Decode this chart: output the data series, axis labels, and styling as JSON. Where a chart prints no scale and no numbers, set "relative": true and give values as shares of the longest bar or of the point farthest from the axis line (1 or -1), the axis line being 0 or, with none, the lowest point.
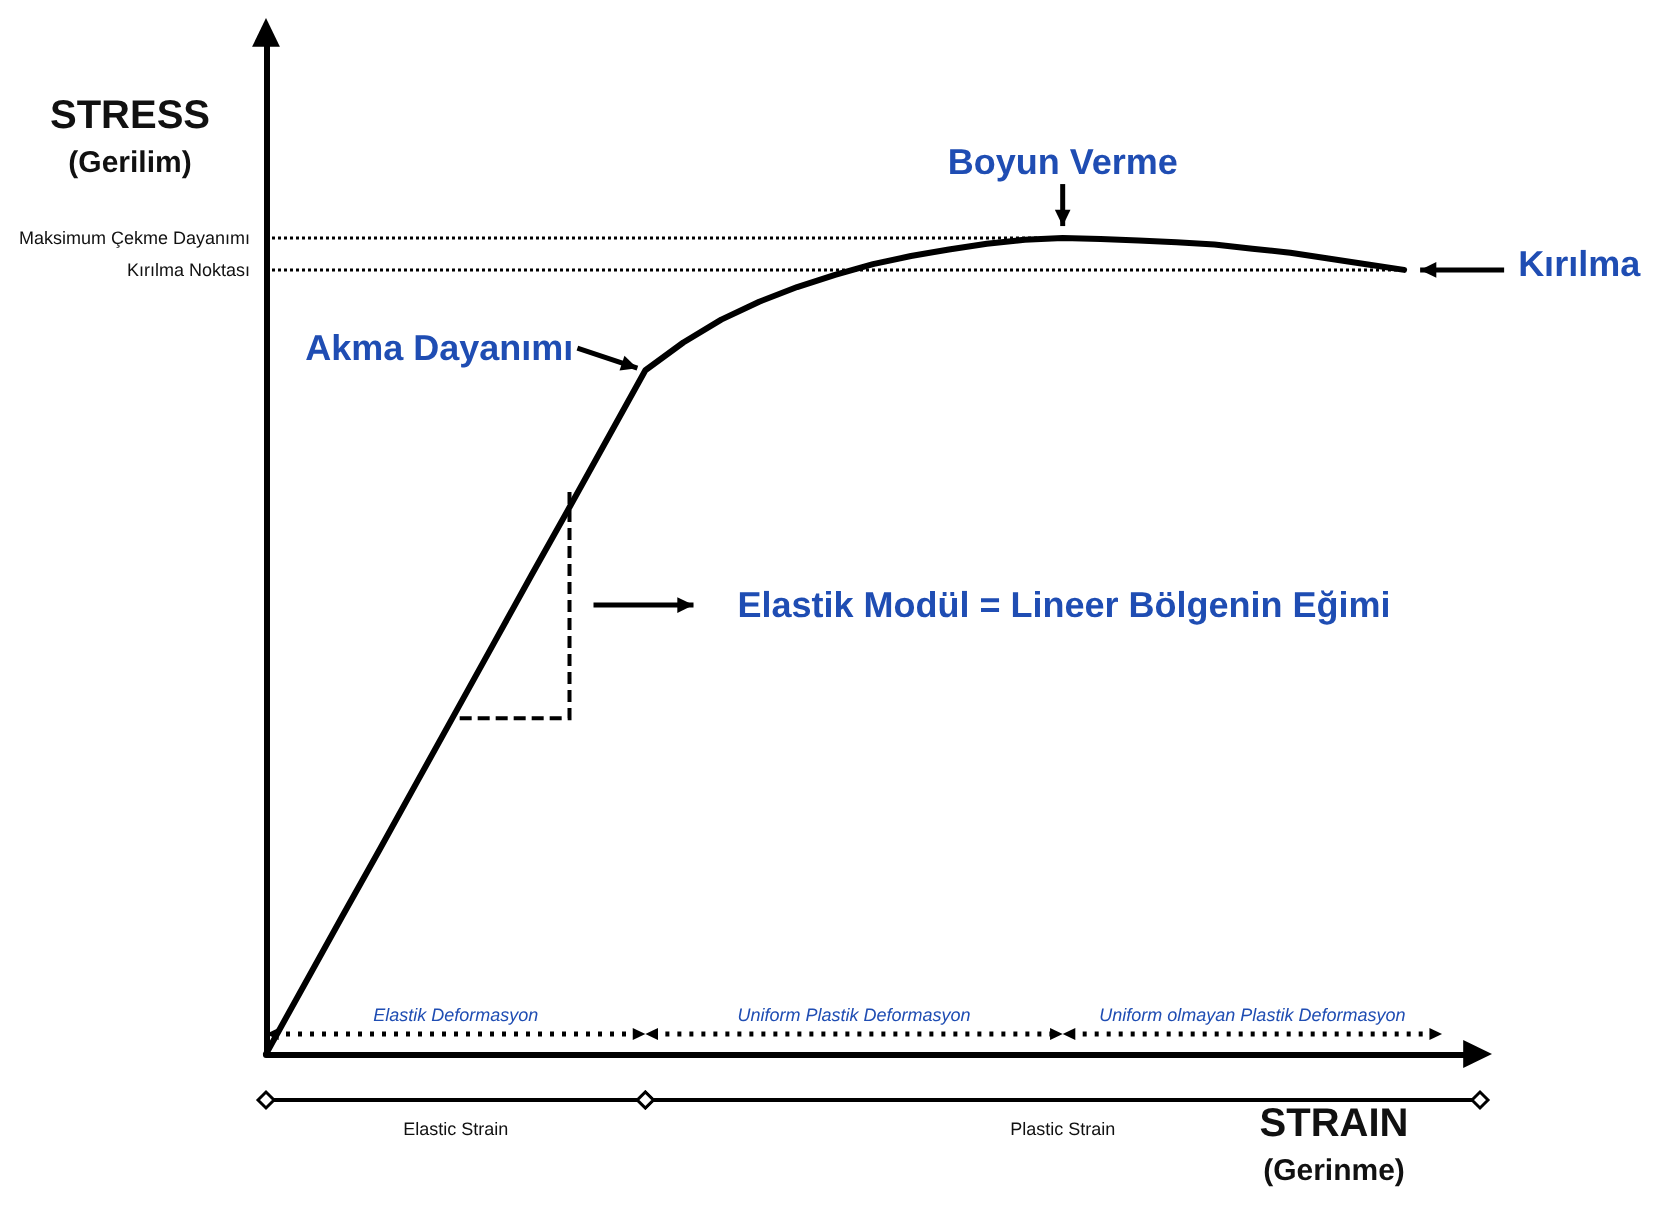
{
  "chart_data": {
    "type": "line",
    "relative": true,
    "grid": false,
    "marker": "none",
    "line_style": "solid",
    "color": "#000000",
    "ylabel": "STRESS\n(Gerilim)",
    "xlabel": "STRAIN\n(Gerinme)",
    "categories": [
      null,
      null,
      null,
      null,
      null,
      null,
      null,
      null,
      null,
      null,
      null,
      null,
      null,
      null,
      null,
      null,
      null,
      null,
      null,
      null,
      null,
      null,
      null,
      null,
      null,
      null,
      null,
      null,
      null,
      null,
      null,
      null,
      null
    ],
    "values": [
      0,
      0.084,
      0.168,
      0.251,
      0.335,
      0.419,
      0.503,
      0.587,
      0.67,
      0.754,
      0.838,
      0.872,
      0.9,
      0.922,
      0.94,
      0.955,
      0.968,
      0.978,
      0.986,
      0.993,
      0.998,
      1,
      0.999,
      0.997,
      0.995,
      0.992,
      0.987,
      0.982,
      0.975,
      0.968,
      0.961,
      null,
      null
    ],
    "ref_lines": [
      {
        "axis": "y",
        "value": 1,
        "label": "Maksimum Çekme Dayanımı",
        "line_style": "dotted"
      },
      {
        "axis": "y",
        "value": 0.961,
        "label": "Kırılma Noktası",
        "line_style": "dotted"
      }
    ],
    "annotations": [
      "Akma Dayanımı",
      "Boyun Verme",
      "Kırılma",
      "Elastik Modül = Lineer Bölgenin Eğimi",
      "Elastik Deformasyon",
      "Uniform Plastik Deformasyon",
      "Uniform olmayan Plastik Deformasyon",
      "Elastic Strain",
      "Plastic Strain"
    ]
  }
}
